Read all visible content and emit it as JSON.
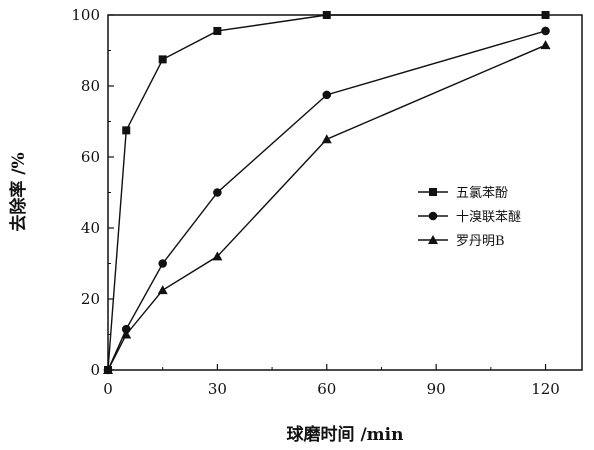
{
  "chart_data": {
    "type": "line",
    "title": "",
    "xlabel": "球磨时间 /min",
    "ylabel": "去除率 /%",
    "xlim": [
      0,
      130
    ],
    "ylim": [
      0,
      100
    ],
    "xticks": [
      0,
      30,
      60,
      90,
      120
    ],
    "yticks": [
      0,
      20,
      40,
      60,
      80,
      100
    ],
    "grid": false,
    "legend_position": "center-right",
    "series": [
      {
        "name": "五氯苯酚",
        "marker": "square",
        "x": [
          0,
          5,
          15,
          30,
          60,
          120
        ],
        "y": [
          0,
          67.5,
          87.5,
          95.5,
          100,
          100
        ]
      },
      {
        "name": "十溴联苯醚",
        "marker": "circle",
        "x": [
          0,
          5,
          15,
          30,
          60,
          120
        ],
        "y": [
          0,
          11.5,
          30,
          50,
          77.5,
          95.5
        ]
      },
      {
        "name": "罗丹明B",
        "marker": "triangle",
        "x": [
          0,
          5,
          15,
          30,
          60,
          120
        ],
        "y": [
          0,
          10,
          22.5,
          32,
          65,
          91.5
        ]
      }
    ]
  }
}
